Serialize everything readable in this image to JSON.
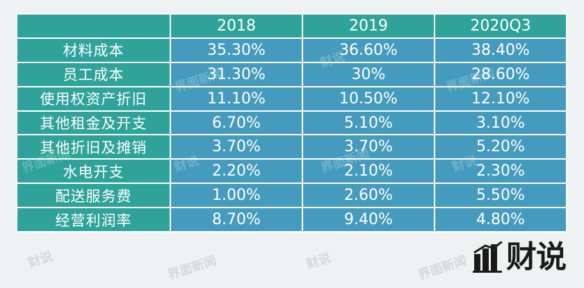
{
  "table": {
    "headers": [
      "",
      "2018",
      "2019",
      "2020Q3"
    ],
    "rows": [
      {
        "label": "材料成本",
        "values": [
          "35.30%",
          "36.60%",
          "38.40%"
        ]
      },
      {
        "label": "员工成本",
        "values": [
          "31.30%",
          "30%",
          "28.60%"
        ]
      },
      {
        "label": "使用权资产折旧",
        "values": [
          "11.10%",
          "10.50%",
          "12.10%"
        ]
      },
      {
        "label": "其他租金及开支",
        "values": [
          "6.70%",
          "5.10%",
          "3.10%"
        ]
      },
      {
        "label": "其他折旧及摊销",
        "values": [
          "3.70%",
          "3.70%",
          "5.20%"
        ]
      },
      {
        "label": "水电开支",
        "values": [
          "2.20%",
          "2.10%",
          "2.30%"
        ]
      },
      {
        "label": "配送服务费",
        "values": [
          "1.00%",
          "2.60%",
          "5.50%"
        ]
      },
      {
        "label": "经营利润率",
        "values": [
          "8.70%",
          "9.40%",
          "4.80%"
        ]
      }
    ]
  },
  "watermarks": {
    "jiemian": "界面新闻",
    "caishuo": "财说"
  },
  "logo": {
    "text": "财说",
    "icon": "bar-chart-logo-icon"
  },
  "colors": {
    "header_bg": "#2fa39a",
    "label_bg": "#2fa39a",
    "cell_bg": "#459bbd",
    "text": "#ffffff"
  }
}
